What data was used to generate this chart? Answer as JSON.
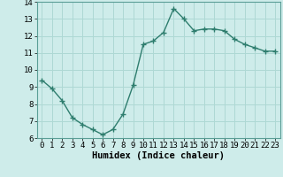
{
  "x": [
    0,
    1,
    2,
    3,
    4,
    5,
    6,
    7,
    8,
    9,
    10,
    11,
    12,
    13,
    14,
    15,
    16,
    17,
    18,
    19,
    20,
    21,
    22,
    23
  ],
  "y": [
    9.4,
    8.9,
    8.2,
    7.2,
    6.8,
    6.5,
    6.2,
    6.5,
    7.4,
    9.1,
    11.5,
    11.7,
    12.2,
    13.6,
    13.0,
    12.3,
    12.4,
    12.4,
    12.3,
    11.8,
    11.5,
    11.3,
    11.1,
    11.1
  ],
  "line_color": "#2e7d6e",
  "bg_color": "#ceecea",
  "grid_color": "#aed8d4",
  "xlabel": "Humidex (Indice chaleur)",
  "xlim": [
    -0.5,
    23.5
  ],
  "ylim": [
    6,
    14
  ],
  "yticks": [
    6,
    7,
    8,
    9,
    10,
    11,
    12,
    13,
    14
  ],
  "xticks": [
    0,
    1,
    2,
    3,
    4,
    5,
    6,
    7,
    8,
    9,
    10,
    11,
    12,
    13,
    14,
    15,
    16,
    17,
    18,
    19,
    20,
    21,
    22,
    23
  ],
  "xtick_labels": [
    "0",
    "1",
    "2",
    "3",
    "4",
    "5",
    "6",
    "7",
    "8",
    "9",
    "10",
    "11",
    "12",
    "13",
    "14",
    "15",
    "16",
    "17",
    "18",
    "19",
    "20",
    "21",
    "22",
    "23"
  ],
  "marker": "+",
  "linewidth": 1.0,
  "markersize": 4,
  "tick_fontsize": 6.5,
  "xlabel_fontsize": 7.5
}
